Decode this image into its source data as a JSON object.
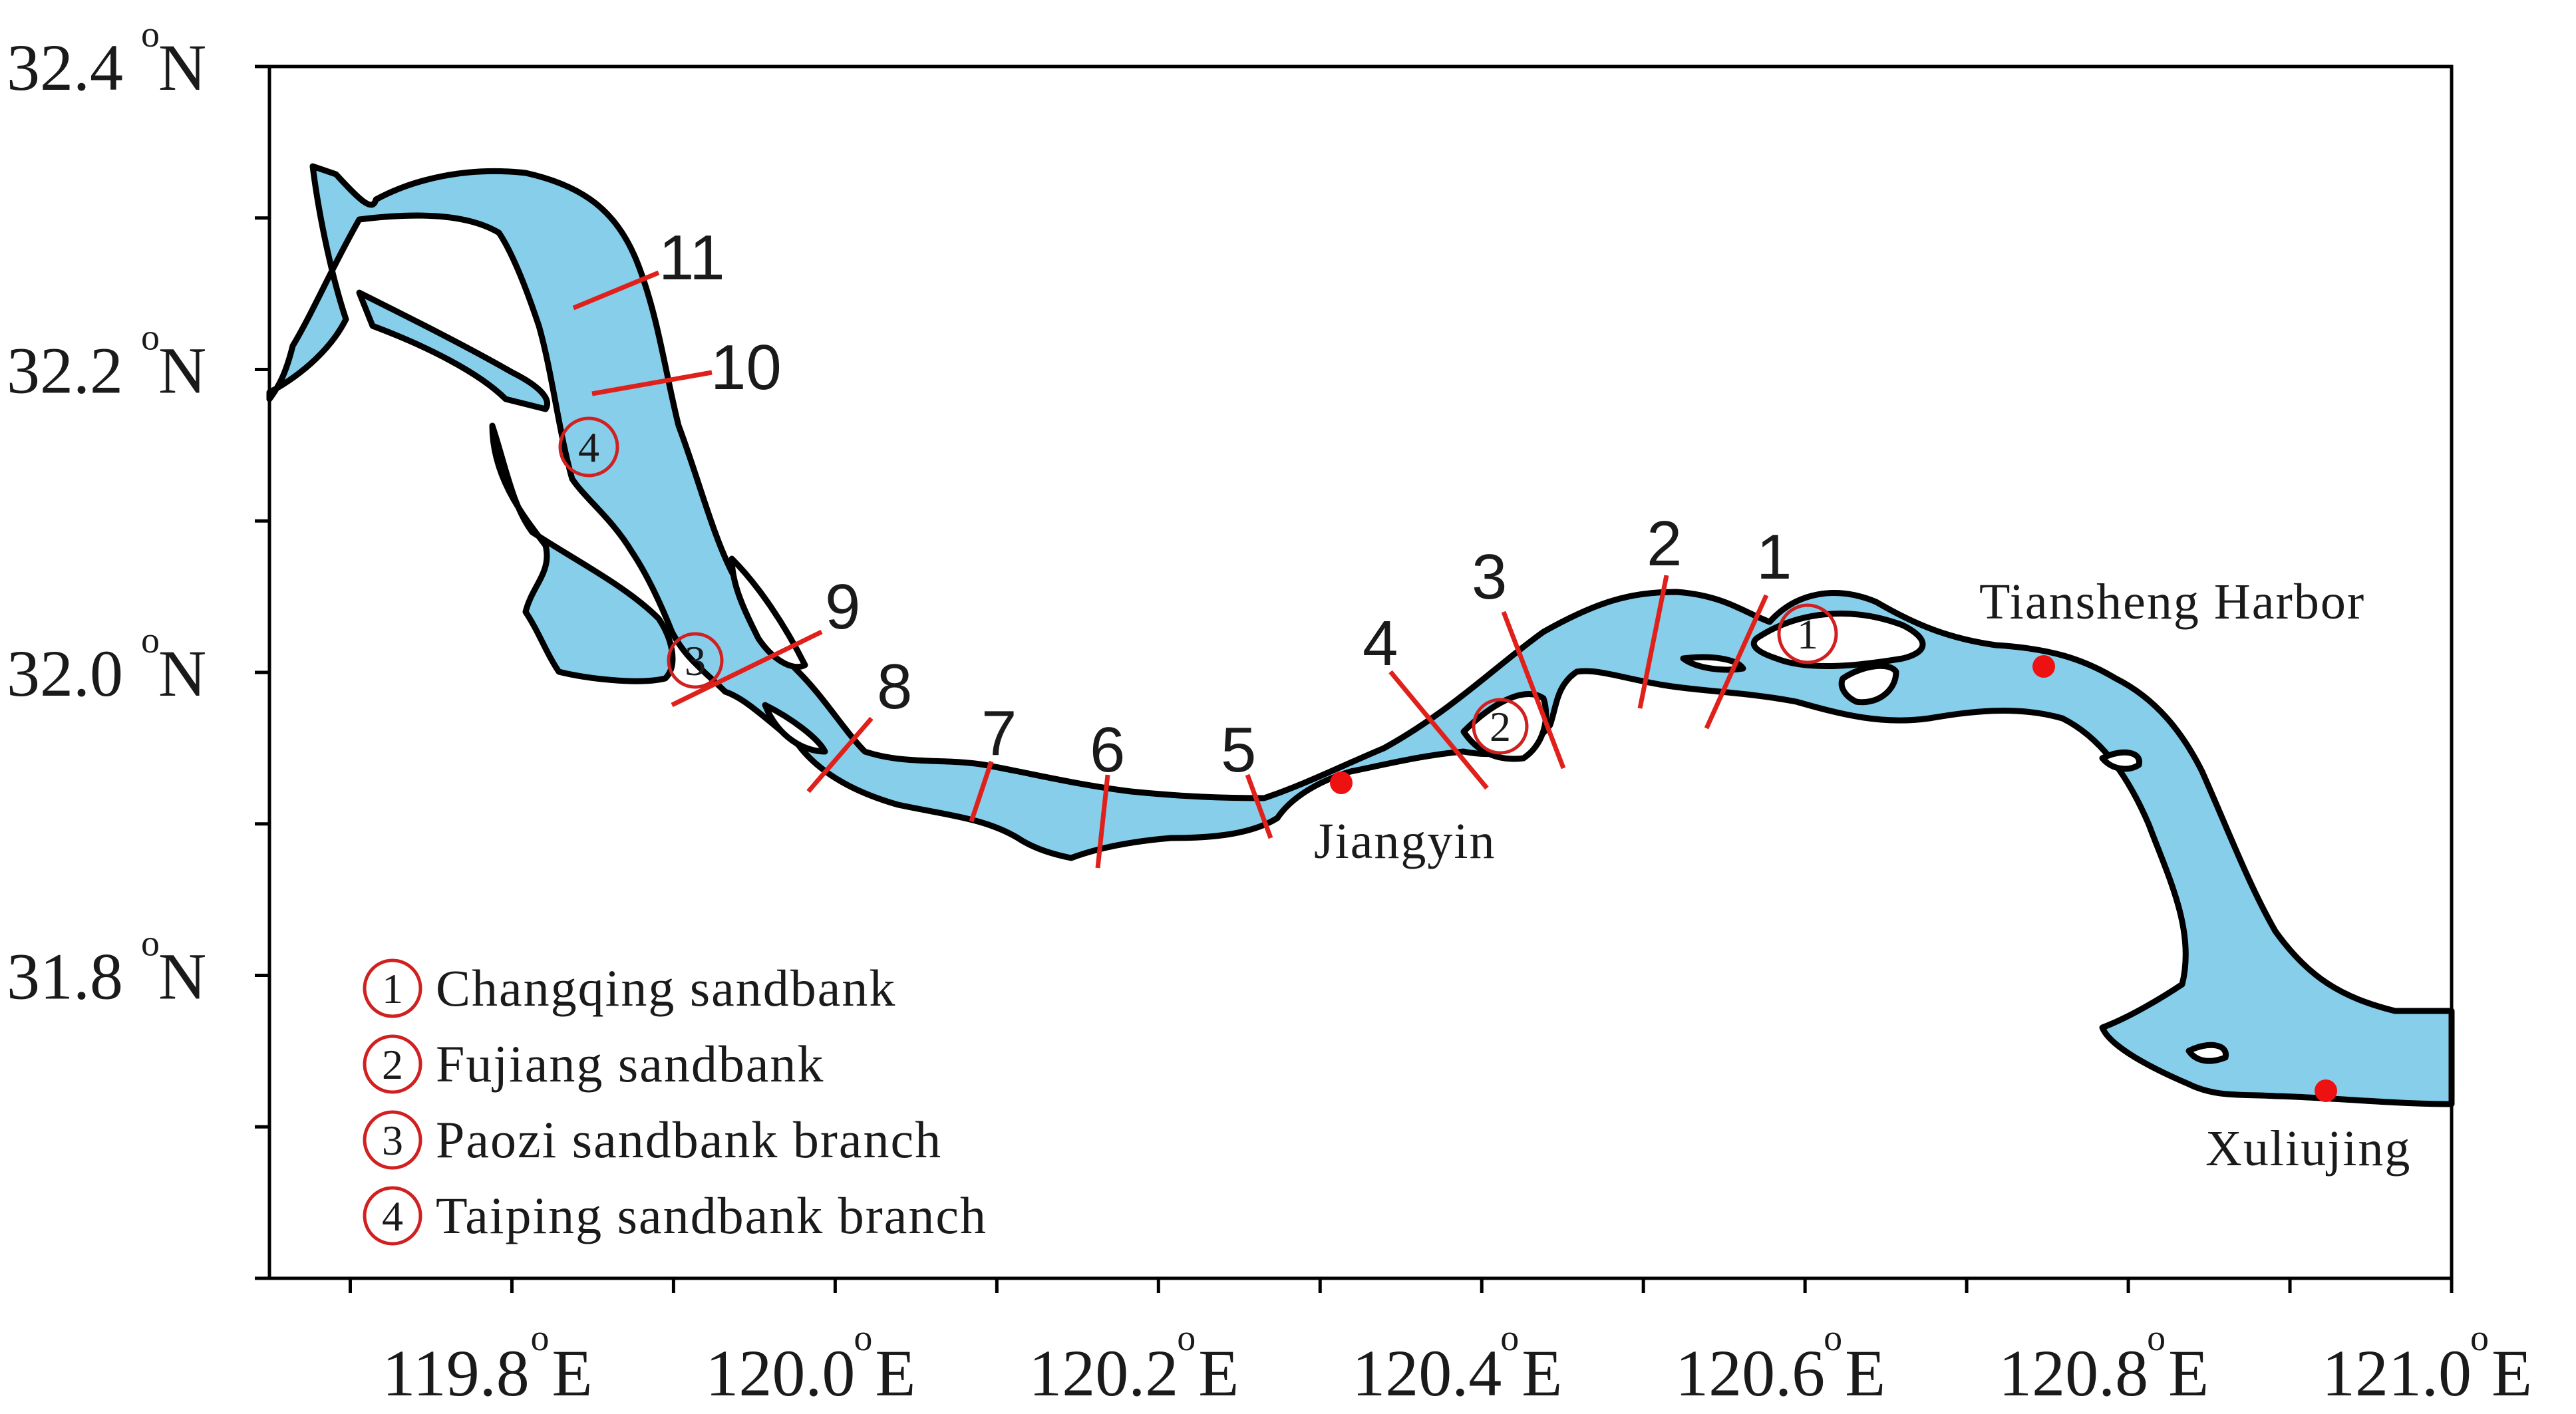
{
  "map": {
    "lat_labels": [
      {
        "num": "32.4",
        "suffix": "N",
        "lat": 32.4
      },
      {
        "num": "32.2",
        "suffix": "N",
        "lat": 32.2
      },
      {
        "num": "32.0",
        "suffix": "N",
        "lat": 32.0
      },
      {
        "num": "31.8",
        "suffix": "N",
        "lat": 31.8
      }
    ],
    "lon_labels": [
      {
        "num": "119.8",
        "suffix": "E",
        "lon": 119.8
      },
      {
        "num": "120.0",
        "suffix": "E",
        "lon": 120.0
      },
      {
        "num": "120.2",
        "suffix": "E",
        "lon": 120.2
      },
      {
        "num": "120.4",
        "suffix": "E",
        "lon": 120.4
      },
      {
        "num": "120.6",
        "suffix": "E",
        "lon": 120.6
      },
      {
        "num": "120.8",
        "suffix": "E",
        "lon": 120.8
      },
      {
        "num": "121.0",
        "suffix": "E",
        "lon": 121.0
      }
    ],
    "degree_symbol": "o",
    "sections": [
      "1",
      "2",
      "3",
      "4",
      "5",
      "6",
      "7",
      "8",
      "9",
      "10",
      "11"
    ],
    "places": {
      "tiansheng": "Tiansheng Harbor",
      "jiangyin": "Jiangyin",
      "xuliujing": "Xuliujing"
    },
    "sandbank_markers": [
      "1",
      "2",
      "3",
      "4"
    ],
    "legend": [
      {
        "num": "1",
        "label": "Changqing sandbank"
      },
      {
        "num": "2",
        "label": "Fujiang  sandbank"
      },
      {
        "num": "3",
        "label": "Paozi  sandbank branch"
      },
      {
        "num": "4",
        "label": "Taiping sandbank branch"
      }
    ],
    "colors": {
      "water": "#87ceeb",
      "coastline": "#000000",
      "section_lines": "#e0201a",
      "place_dots": "#ee1111",
      "marker_circles": "#d02020"
    }
  }
}
